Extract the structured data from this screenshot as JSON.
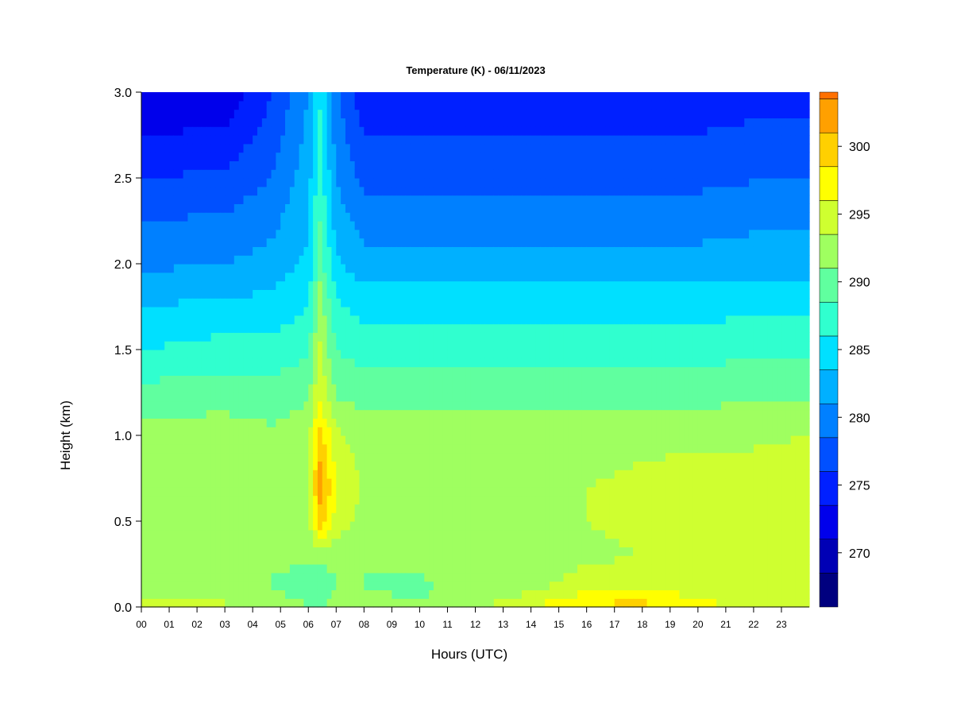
{
  "chart_data": {
    "type": "heatmap",
    "title": "Temperature (K) - 06/11/2023",
    "xlabel": "Hours (UTC)",
    "ylabel": "Height (km)",
    "xlim": [
      0,
      24
    ],
    "ylim": [
      0.0,
      3.0
    ],
    "x_ticks": [
      "00",
      "01",
      "02",
      "03",
      "04",
      "05",
      "06",
      "07",
      "08",
      "09",
      "10",
      "11",
      "12",
      "13",
      "14",
      "15",
      "16",
      "17",
      "18",
      "19",
      "20",
      "21",
      "22",
      "23"
    ],
    "y_ticks": [
      "0.0",
      "0.5",
      "1.0",
      "1.5",
      "2.0",
      "2.5",
      "3.0"
    ],
    "colorbar": {
      "label_ticks": [
        270,
        275,
        280,
        285,
        290,
        295,
        300
      ],
      "range": [
        266,
        304
      ],
      "step": 2.5,
      "colors": [
        "#00007F",
        "#0000B5",
        "#0000EB",
        "#0020FF",
        "#0050FF",
        "#0080FF",
        "#00B0FF",
        "#00E0FF",
        "#30FFCF",
        "#60FF9F",
        "#9FFF60",
        "#CFFF30",
        "#FFFF00",
        "#FFD000",
        "#FFA000",
        "#FF7000",
        "#FF4000",
        "#FF0000",
        "#C80000",
        "#8B0000"
      ]
    },
    "grid": false,
    "profile_heights_km": [
      0.0,
      0.05,
      0.1,
      0.2,
      0.3,
      0.5,
      0.7,
      1.0,
      1.2,
      1.5,
      1.8,
      2.0,
      2.3,
      2.6,
      3.0
    ],
    "temperature_profiles": [
      {
        "hour": 0,
        "values": [
          294.5,
          293.5,
          292.5,
          292.0,
          292.5,
          293.0,
          293.0,
          292.0,
          290.0,
          286.0,
          283.0,
          280.5,
          278.0,
          275.0,
          271.0
        ]
      },
      {
        "hour": 3,
        "values": [
          294.0,
          293.0,
          292.0,
          291.5,
          292.0,
          293.0,
          293.0,
          292.0,
          290.5,
          287.0,
          283.5,
          281.0,
          278.5,
          275.5,
          271.5
        ]
      },
      {
        "hour": 4.7,
        "values": [
          293.0,
          292.0,
          291.0,
          291.0,
          292.0,
          292.5,
          292.5,
          291.5,
          290.0,
          287.0,
          284.0,
          282.0,
          280.0,
          278.0,
          276.0
        ]
      },
      {
        "hour": 6.0,
        "values": [
          291.0,
          290.5,
          290.0,
          290.5,
          291.5,
          293.0,
          293.0,
          292.5,
          291.0,
          288.0,
          285.5,
          284.0,
          283.0,
          282.0,
          281.0
        ]
      },
      {
        "hour": 6.4,
        "values": [
          290.5,
          290.5,
          290.0,
          290.5,
          292.0,
          300.0,
          302.5,
          300.0,
          296.0,
          294.0,
          292.0,
          290.0,
          288.5,
          287.0,
          286.0
        ]
      },
      {
        "hour": 7.0,
        "values": [
          292.0,
          291.5,
          291.0,
          291.0,
          292.0,
          295.0,
          296.0,
          294.0,
          291.0,
          288.5,
          286.0,
          284.0,
          282.0,
          280.5,
          279.0
        ]
      },
      {
        "hour": 8,
        "values": [
          292.0,
          291.5,
          291.0,
          291.0,
          292.0,
          292.5,
          293.0,
          292.5,
          290.5,
          287.5,
          284.5,
          282.0,
          279.5,
          277.0,
          274.0
        ]
      },
      {
        "hour": 10,
        "values": [
          291.5,
          291.0,
          290.5,
          291.0,
          291.5,
          292.5,
          293.0,
          292.5,
          290.5,
          287.5,
          284.5,
          282.0,
          279.5,
          277.0,
          274.0
        ]
      },
      {
        "hour": 12,
        "values": [
          293.0,
          292.5,
          292.0,
          292.0,
          292.5,
          293.0,
          293.0,
          292.5,
          290.5,
          287.5,
          284.5,
          282.0,
          279.5,
          277.0,
          274.5
        ]
      },
      {
        "hour": 14,
        "values": [
          296.0,
          294.5,
          293.0,
          292.0,
          292.0,
          292.5,
          293.0,
          292.5,
          290.5,
          287.5,
          284.5,
          282.0,
          279.5,
          277.0,
          274.5
        ]
      },
      {
        "hour": 16,
        "values": [
          299.0,
          297.5,
          295.5,
          294.0,
          293.0,
          293.5,
          293.5,
          292.5,
          290.5,
          287.5,
          284.5,
          282.0,
          279.5,
          277.0,
          274.5
        ]
      },
      {
        "hour": 18,
        "values": [
          299.5,
          298.0,
          296.0,
          294.5,
          293.5,
          294.0,
          294.0,
          293.0,
          290.5,
          287.5,
          284.5,
          282.0,
          279.5,
          277.0,
          274.5
        ]
      },
      {
        "hour": 20,
        "values": [
          297.0,
          296.0,
          295.0,
          294.0,
          294.0,
          294.5,
          294.5,
          293.0,
          290.5,
          287.5,
          284.5,
          282.0,
          279.5,
          277.0,
          274.5
        ]
      },
      {
        "hour": 22,
        "values": [
          295.5,
          294.5,
          294.0,
          294.0,
          294.5,
          295.0,
          295.0,
          293.0,
          291.0,
          288.0,
          285.0,
          282.5,
          280.0,
          277.5,
          275.0
        ]
      },
      {
        "hour": 24,
        "values": [
          294.5,
          294.0,
          294.0,
          294.5,
          295.0,
          295.5,
          295.5,
          293.5,
          291.0,
          288.0,
          285.0,
          282.5,
          280.0,
          277.5,
          275.0
        ]
      }
    ]
  }
}
